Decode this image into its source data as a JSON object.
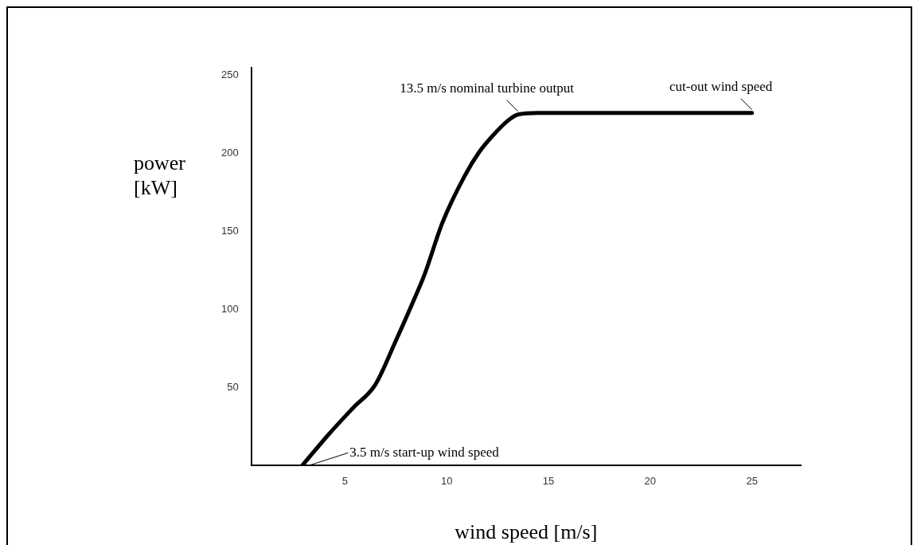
{
  "chart_data": {
    "type": "line",
    "xlabel": "wind speed [m/s]",
    "ylabel": "power [kW]",
    "series": [
      {
        "color": "#000000",
        "x": [
          2.9,
          4.2,
          5.4,
          6.5,
          7.5,
          8.35,
          8.9,
          9.8,
          10.9,
          11.6,
          12.3,
          13.0,
          13.5,
          14.5,
          17,
          20,
          23,
          25
        ],
        "values": [
          0,
          20,
          37,
          52,
          80,
          105,
          122,
          156,
          186,
          201,
          212,
          221,
          225,
          226,
          226,
          226,
          226,
          226
        ]
      }
    ],
    "xlim": [
      0.4,
      27.4
    ],
    "ylim": [
      0,
      255
    ],
    "xticks": [
      5,
      10,
      15,
      20,
      25
    ],
    "yticks": [
      50,
      100,
      150,
      200,
      250
    ],
    "grid": false,
    "legend": false,
    "marker": "none",
    "line_style": "solid",
    "annotations": [
      {
        "text": "3.5 m/s start-up wind speed",
        "x": 3.2,
        "y": 0
      },
      {
        "text": "13.5 m/s nominal turbine output",
        "x": 13.5,
        "y": 225
      },
      {
        "text": "cut-out wind speed",
        "x": 25,
        "y": 226
      }
    ]
  }
}
